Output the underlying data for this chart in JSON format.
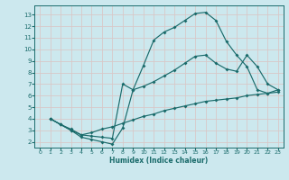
{
  "xlabel": "Humidex (Indice chaleur)",
  "bg_color": "#cce8ee",
  "grid_color": "#e8e8e8",
  "line_color": "#1a6b6b",
  "xlim": [
    -0.5,
    23.5
  ],
  "ylim": [
    1.5,
    13.8
  ],
  "xticks": [
    0,
    1,
    2,
    3,
    4,
    5,
    6,
    7,
    8,
    9,
    10,
    11,
    12,
    13,
    14,
    15,
    16,
    17,
    18,
    19,
    20,
    21,
    22,
    23
  ],
  "yticks": [
    2,
    3,
    4,
    5,
    6,
    7,
    8,
    9,
    10,
    11,
    12,
    13
  ],
  "line1_x": [
    1,
    2,
    3,
    4,
    5,
    6,
    7,
    8,
    9,
    10,
    11,
    12,
    13,
    14,
    15,
    16,
    17,
    18,
    19,
    20,
    21,
    22,
    23
  ],
  "line1_y": [
    4.0,
    3.5,
    3.0,
    2.4,
    2.2,
    2.0,
    1.8,
    3.2,
    6.5,
    8.6,
    10.8,
    11.5,
    11.9,
    12.5,
    13.1,
    13.2,
    12.5,
    10.7,
    9.5,
    8.5,
    6.5,
    6.2,
    6.5
  ],
  "line2_x": [
    1,
    2,
    3,
    4,
    5,
    6,
    7,
    8,
    9,
    10,
    11,
    12,
    13,
    14,
    15,
    16,
    17,
    18,
    19,
    20,
    21,
    22,
    23
  ],
  "line2_y": [
    4.0,
    3.5,
    3.1,
    2.6,
    2.5,
    2.4,
    2.3,
    7.0,
    6.5,
    6.8,
    7.2,
    7.7,
    8.2,
    8.8,
    9.4,
    9.5,
    8.8,
    8.3,
    8.1,
    9.5,
    8.5,
    7.0,
    6.5
  ],
  "line3_x": [
    1,
    2,
    3,
    4,
    5,
    6,
    7,
    8,
    9,
    10,
    11,
    12,
    13,
    14,
    15,
    16,
    17,
    18,
    19,
    20,
    21,
    22,
    23
  ],
  "line3_y": [
    4.0,
    3.5,
    3.0,
    2.6,
    2.8,
    3.1,
    3.3,
    3.6,
    3.9,
    4.2,
    4.4,
    4.7,
    4.9,
    5.1,
    5.3,
    5.5,
    5.6,
    5.7,
    5.8,
    6.0,
    6.1,
    6.2,
    6.3
  ]
}
